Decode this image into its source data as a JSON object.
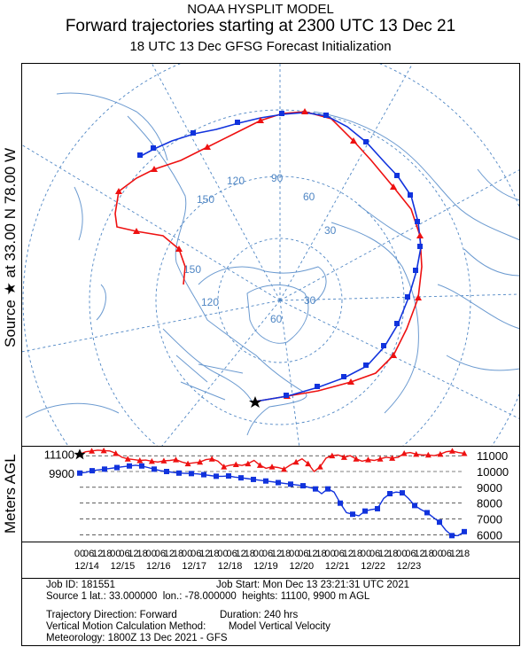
{
  "header": {
    "line1": "NOAA HYSPLIT MODEL",
    "line2": "Forward trajectories starting at 2300 UTC 13 Dec 21",
    "line3": "18 UTC 13 Dec    GFSG  Forecast Initialization"
  },
  "side_label": "Source ★  at    33.00 N    78.00 W",
  "meters_label": "Meters AGL",
  "map": {
    "lon_labels": [
      "120",
      "90",
      "60",
      "150",
      "30",
      "150",
      "120",
      "60",
      "30"
    ],
    "colors": {
      "grid": "#4f86c4",
      "land": "#6b9ad0",
      "red": "#ee1111",
      "blue": "#1133dd"
    }
  },
  "chart_data": {
    "type": "line",
    "series": [
      {
        "color": "#ee1111",
        "marker": "triangle",
        "start_height": 11100,
        "values": [
          11100,
          11250,
          11300,
          11350,
          11320,
          11300,
          11150,
          10900,
          10800,
          10750,
          10700,
          10720,
          10650,
          10600,
          10680,
          10700,
          10750,
          10600,
          10500,
          10550,
          10600,
          10750,
          10800,
          10650,
          10300,
          10400,
          10450,
          10380,
          10500,
          10700,
          10400,
          10200,
          10300,
          10250,
          10150,
          10400,
          10600,
          10800,
          10500,
          10000,
          10300,
          10850,
          11000,
          11050,
          10900,
          11000,
          10800,
          10650,
          10750,
          10700,
          10800,
          10900,
          10850,
          10900,
          11150,
          11200,
          11100,
          11050,
          11050,
          11000,
          11100,
          11250,
          11300,
          11200,
          11150
        ]
      },
      {
        "color": "#1133dd",
        "marker": "square",
        "start_height": 9900,
        "values": [
          9900,
          9950,
          10050,
          10100,
          10150,
          10200,
          10250,
          10300,
          10350,
          10400,
          10350,
          10250,
          10150,
          10050,
          10000,
          9950,
          9900,
          9880,
          9870,
          9850,
          9800,
          9750,
          9700,
          9700,
          9720,
          9650,
          9600,
          9550,
          9500,
          9450,
          9400,
          9350,
          9300,
          9250,
          9200,
          9150,
          9100,
          9000,
          8900,
          8600,
          8900,
          8700,
          8000,
          7400,
          7300,
          7200,
          7500,
          7600,
          7650,
          8300,
          8600,
          8700,
          8650,
          8300,
          7850,
          7600,
          7400,
          7100,
          6800,
          6300,
          5950,
          5950,
          6200
        ]
      }
    ],
    "right_ticks": [
      "11000",
      "10000",
      "9000",
      "8000",
      "7000",
      "6000"
    ],
    "left_ticks": [
      "11100",
      "9900"
    ],
    "y_range": [
      5800,
      11400
    ],
    "hour_labels": [
      "00",
      "06",
      "12",
      "18",
      "00",
      "06",
      "12",
      "18",
      "00",
      "06",
      "12",
      "18",
      "00",
      "06",
      "12",
      "18",
      "00",
      "06",
      "12",
      "18",
      "00",
      "06",
      "12",
      "18",
      "00",
      "06",
      "12",
      "18",
      "00",
      "06",
      "12",
      "18",
      "00",
      "06",
      "12",
      "18",
      "00",
      "06",
      "12",
      "18",
      "00",
      "06",
      "12",
      "18"
    ],
    "date_labels": [
      "12/14",
      "12/15",
      "12/16",
      "12/17",
      "12/18",
      "12/19",
      "12/20",
      "12/21",
      "12/22",
      "12/23"
    ]
  },
  "info": {
    "job_id": "Job ID: 181551",
    "job_start": "Job Start: Mon Dec 13 23:21:31 UTC 2021",
    "source": "Source 1 lat.: 33.000000  lon.: -78.000000  heights: 11100, 9900 m AGL",
    "direction": "Trajectory Direction: Forward",
    "duration": "Duration: 240 hrs",
    "vertical": "Vertical Motion Calculation Method:        Model Vertical Velocity",
    "meteorology": "Meteorology: 1800Z 13 Dec 2021 - GFS"
  }
}
